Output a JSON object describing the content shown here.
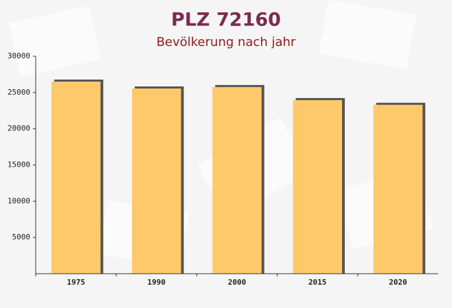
{
  "chart_data": {
    "type": "bar",
    "title": "PLZ 72160",
    "subtitle": "Bevölkerung nach jahr",
    "categories": [
      "1975",
      "1990",
      "2000",
      "2015",
      "2020"
    ],
    "values": [
      26500,
      25550,
      25750,
      23950,
      23300
    ],
    "color": "#fec96a",
    "ylim": [
      0,
      30000
    ],
    "yticks": [
      5000,
      10000,
      15000,
      20000,
      25000,
      30000
    ]
  }
}
